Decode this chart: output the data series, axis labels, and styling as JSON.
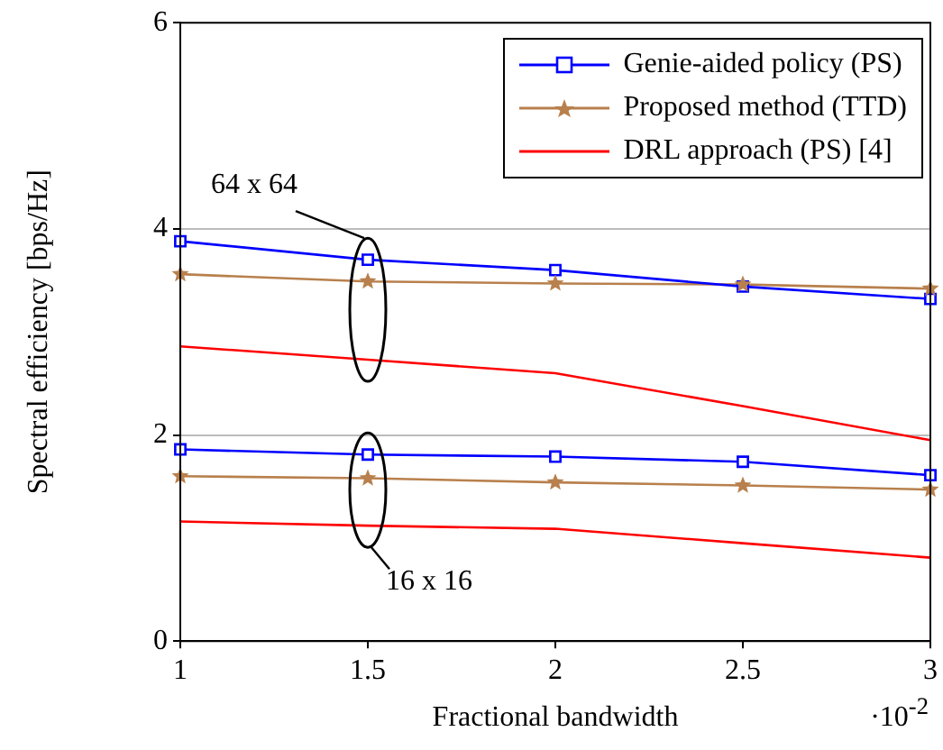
{
  "chart_data": {
    "type": "line",
    "xlabel": "Fractional bandwidth",
    "ylabel": "Spectral efficiency [bps/Hz]",
    "x": [
      1,
      1.5,
      2,
      2.5,
      3
    ],
    "xlim": [
      1,
      3
    ],
    "xticks": [
      1,
      1.5,
      2,
      2.5,
      3
    ],
    "ylim": [
      0,
      6
    ],
    "yticks": [
      0,
      2,
      4,
      6
    ],
    "grid": "y",
    "legend": "top right",
    "annotations": [
      "·10$^{-2}$",
      "64 x 64",
      "16 x 16"
    ],
    "series": [
      {
        "name": "Genie-aided policy (PS)",
        "color": "#0000ff",
        "marker": "square",
        "values": [
          3.88,
          3.7,
          3.6,
          3.44,
          3.32
        ]
      },
      {
        "name": "Proposed method (TTD)",
        "color": "#b8804d",
        "marker": "star",
        "values": [
          3.56,
          3.49,
          3.47,
          3.46,
          3.42
        ]
      },
      {
        "name": "DRL approach (PS) [4]",
        "color": "#ff0000",
        "marker": "none",
        "values": [
          2.86,
          2.73,
          2.6,
          2.28,
          1.95
        ]
      },
      {
        "color": "#0000ff",
        "marker": "square",
        "values": [
          1.86,
          1.81,
          1.79,
          1.74,
          1.61
        ]
      },
      {
        "color": "#b8804d",
        "marker": "star",
        "values": [
          1.6,
          1.58,
          1.54,
          1.51,
          1.47
        ]
      },
      {
        "color": "#ff0000",
        "marker": "none",
        "values": [
          1.16,
          1.12,
          1.09,
          0.95,
          0.81
        ]
      }
    ]
  }
}
